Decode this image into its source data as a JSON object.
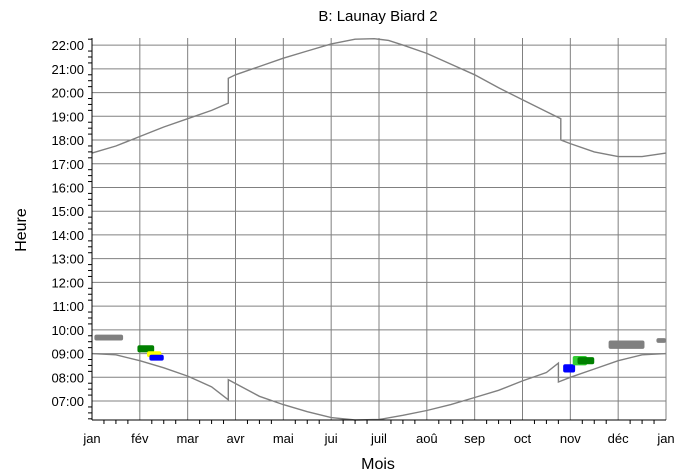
{
  "chart_data": {
    "type": "line",
    "title": "B: Launay Biard 2",
    "xlabel": "Mois",
    "ylabel": "Heure",
    "x_tick_labels": [
      "jan",
      "fév",
      "mar",
      "avr",
      "mai",
      "jui",
      "juil",
      "aoû",
      "sep",
      "oct",
      "nov",
      "déc",
      "jan"
    ],
    "y_tick_labels": [
      "07:00",
      "08:00",
      "09:00",
      "10:00",
      "11:00",
      "12:00",
      "13:00",
      "14:00",
      "15:00",
      "16:00",
      "17:00",
      "18:00",
      "19:00",
      "20:00",
      "21:00",
      "22:00"
    ],
    "xlim": [
      0,
      12
    ],
    "ylim": [
      6.2,
      22.3
    ],
    "grid": true,
    "colors": {
      "curve": "#808080",
      "grid": "#808080",
      "gray_patch": "#808080",
      "green_patch": "#008000",
      "yellow_patch": "#ffff00",
      "blue_patch": "#0000ff",
      "light_green_patch": "#33cc33"
    },
    "series": [
      {
        "role": "upper-curve",
        "color": "#808080",
        "points": [
          [
            0,
            17.45
          ],
          [
            0.5,
            17.75
          ],
          [
            1,
            18.15
          ],
          [
            1.5,
            18.55
          ],
          [
            2,
            18.9
          ],
          [
            2.5,
            19.25
          ],
          [
            2.85,
            19.55
          ],
          [
            2.85,
            20.6
          ],
          [
            3,
            20.75
          ],
          [
            3.5,
            21.1
          ],
          [
            4,
            21.45
          ],
          [
            4.5,
            21.75
          ],
          [
            5,
            22.05
          ],
          [
            5.5,
            22.25
          ],
          [
            5.9,
            22.27
          ],
          [
            6.2,
            22.2
          ],
          [
            6.5,
            22.0
          ],
          [
            7,
            21.65
          ],
          [
            7.5,
            21.2
          ],
          [
            8,
            20.75
          ],
          [
            8.5,
            20.2
          ],
          [
            9,
            19.7
          ],
          [
            9.5,
            19.2
          ],
          [
            9.8,
            18.9
          ],
          [
            9.8,
            18.0
          ],
          [
            10,
            17.85
          ],
          [
            10.5,
            17.5
          ],
          [
            11,
            17.3
          ],
          [
            11.5,
            17.3
          ],
          [
            12,
            17.45
          ]
        ]
      },
      {
        "role": "lower-curve",
        "color": "#808080",
        "points": [
          [
            0,
            9.0
          ],
          [
            0.5,
            8.95
          ],
          [
            1,
            8.7
          ],
          [
            1.5,
            8.4
          ],
          [
            2,
            8.05
          ],
          [
            2.5,
            7.6
          ],
          [
            2.85,
            7.05
          ],
          [
            2.85,
            7.9
          ],
          [
            3.5,
            7.2
          ],
          [
            4,
            6.85
          ],
          [
            4.5,
            6.55
          ],
          [
            5,
            6.3
          ],
          [
            5.5,
            6.2
          ],
          [
            6,
            6.22
          ],
          [
            6.5,
            6.4
          ],
          [
            7,
            6.6
          ],
          [
            7.5,
            6.85
          ],
          [
            8,
            7.15
          ],
          [
            8.5,
            7.45
          ],
          [
            9,
            7.85
          ],
          [
            9.5,
            8.2
          ],
          [
            9.75,
            8.6
          ],
          [
            9.75,
            7.8
          ],
          [
            10,
            8.0
          ],
          [
            10.5,
            8.35
          ],
          [
            11,
            8.7
          ],
          [
            11.5,
            8.95
          ],
          [
            12,
            9.0
          ]
        ]
      }
    ],
    "patches": [
      {
        "color": "#808080",
        "x": [
          0.05,
          0.65
        ],
        "y": [
          9.55,
          9.8
        ]
      },
      {
        "color": "#008000",
        "x": [
          0.95,
          1.3
        ],
        "y": [
          9.05,
          9.35
        ]
      },
      {
        "color": "#ffff00",
        "x": [
          1.15,
          1.45
        ],
        "y": [
          8.85,
          9.1
        ]
      },
      {
        "color": "#0000ff",
        "x": [
          1.2,
          1.5
        ],
        "y": [
          8.7,
          8.95
        ]
      },
      {
        "color": "#0000ff",
        "x": [
          9.85,
          10.1
        ],
        "y": [
          8.2,
          8.55
        ]
      },
      {
        "color": "#33cc33",
        "x": [
          10.05,
          10.35
        ],
        "y": [
          8.5,
          8.9
        ]
      },
      {
        "color": "#008000",
        "x": [
          10.15,
          10.5
        ],
        "y": [
          8.55,
          8.85
        ]
      },
      {
        "color": "#808080",
        "x": [
          10.8,
          11.55
        ],
        "y": [
          9.2,
          9.55
        ]
      },
      {
        "color": "#808080",
        "x": [
          11.8,
          12.0
        ],
        "y": [
          9.45,
          9.65
        ]
      }
    ]
  }
}
